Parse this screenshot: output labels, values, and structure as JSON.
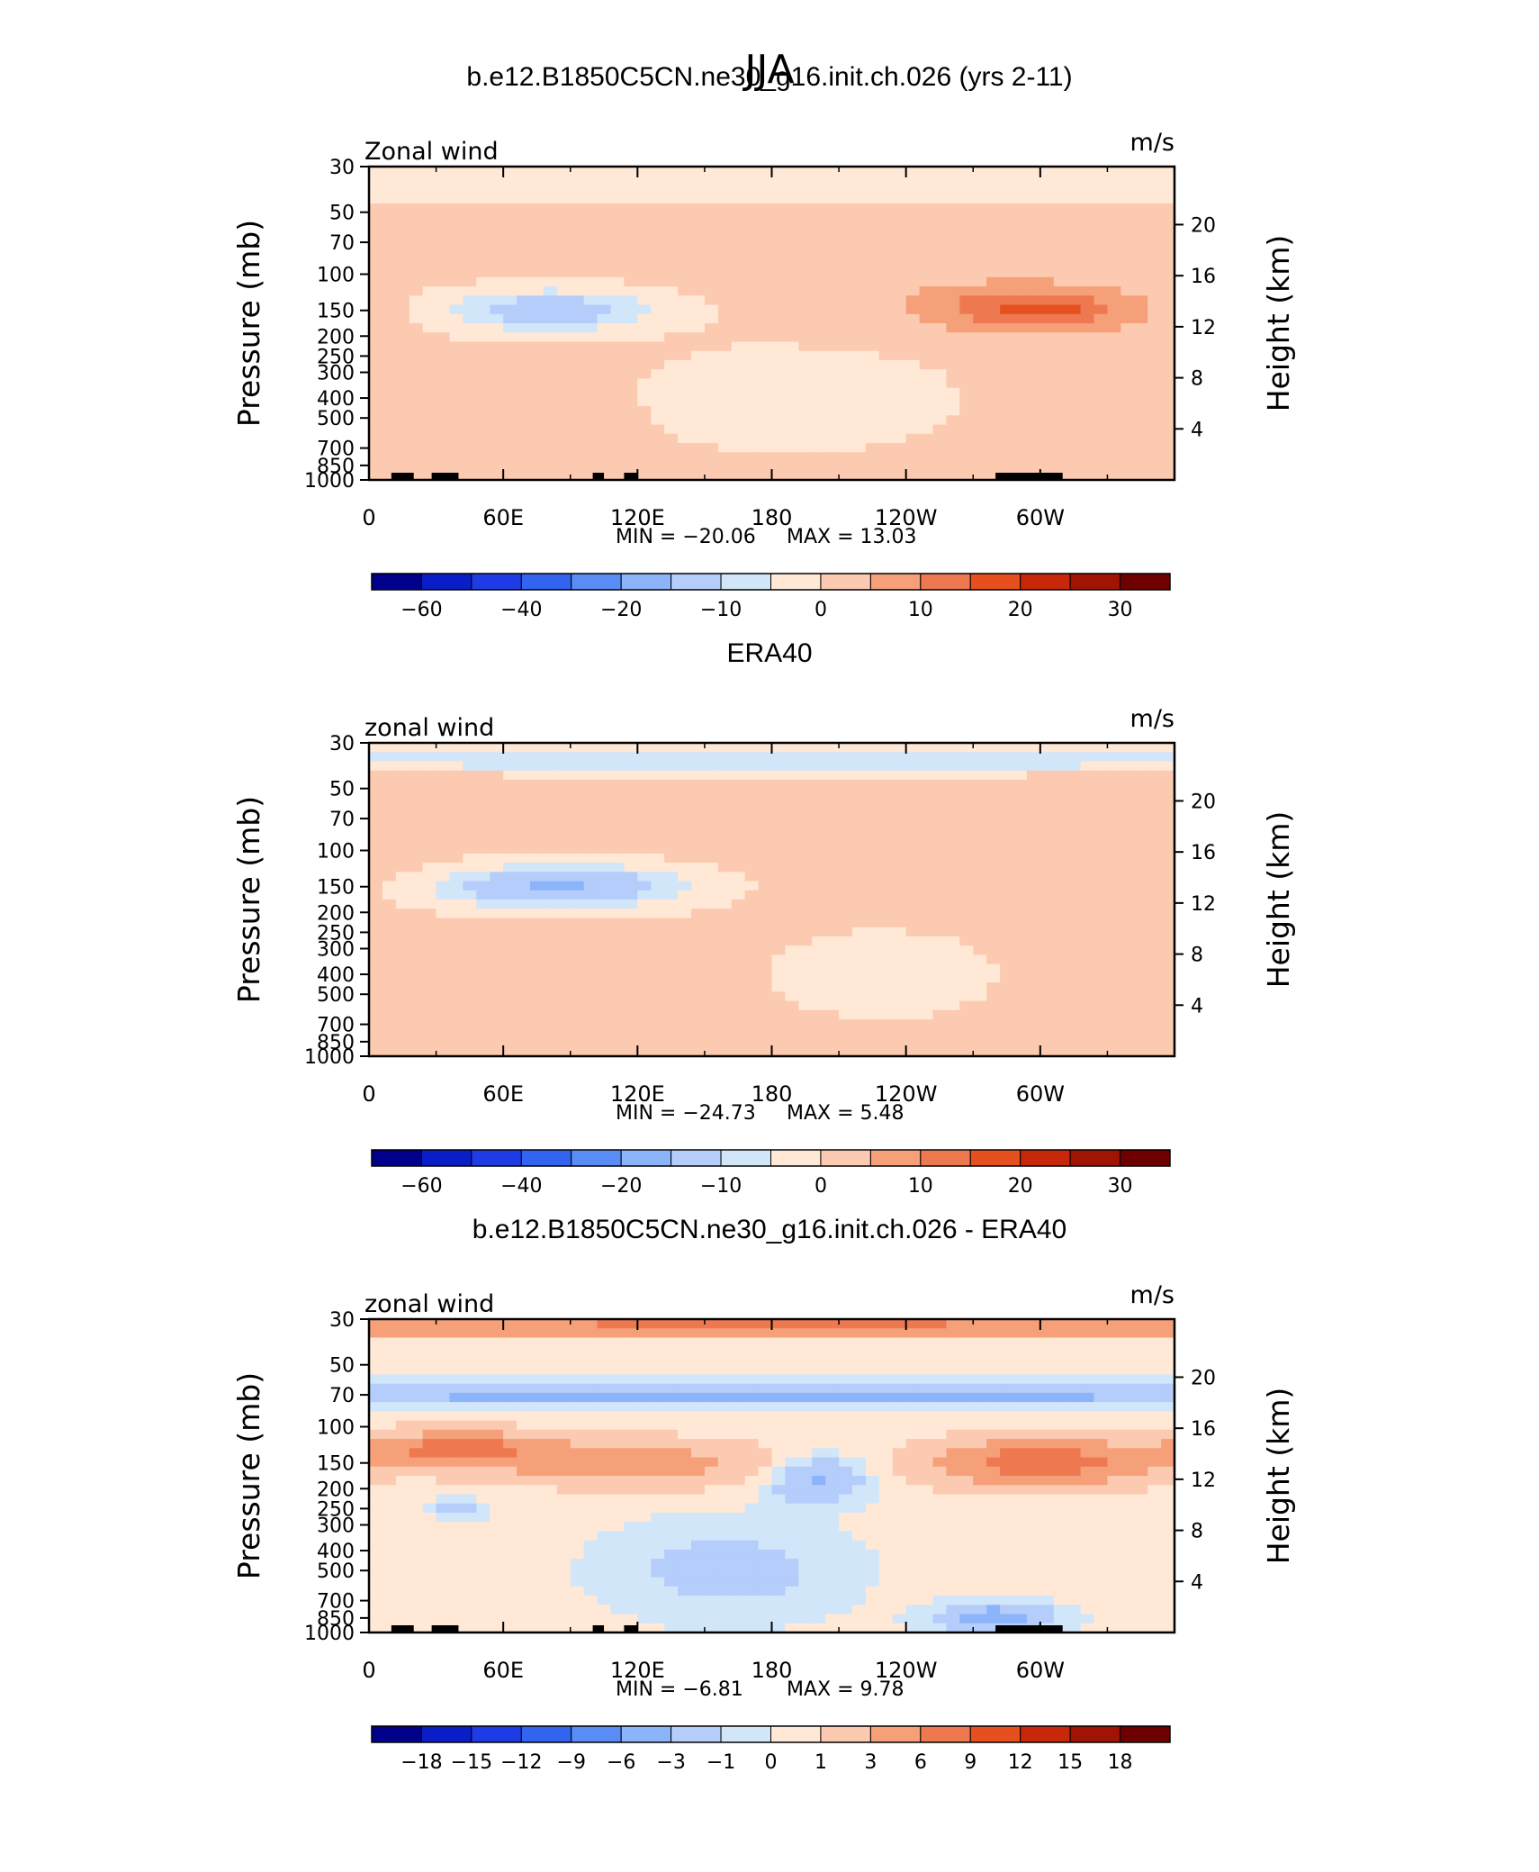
{
  "title": "JJA",
  "colors": {
    "main_scale": [
      "#00008b",
      "#0a1ec8",
      "#1e3ce6",
      "#3264f0",
      "#5a8cf5",
      "#8cb4fa",
      "#b4cdfa",
      "#d2e6fa",
      "#ffe8d6",
      "#fbcab0",
      "#f5a078",
      "#ee7850",
      "#e6501e",
      "#c8280a",
      "#a01405",
      "#6e0000"
    ],
    "diff_scale": [
      "#00008b",
      "#0a1ec8",
      "#1e3ce6",
      "#3264f0",
      "#5a8cf5",
      "#8cb4fa",
      "#b4cdfa",
      "#d2e6fa",
      "#ffe8d6",
      "#fbcab0",
      "#f5a078",
      "#ee7850",
      "#e6501e",
      "#c8280a",
      "#a01405",
      "#6e0000"
    ],
    "land": "#000000"
  },
  "chart_data": [
    {
      "type": "heatmap",
      "title": "b.e12.B1850C5CN.ne30_g16.init.ch.026 (yrs 2-11)",
      "left_label": "Zonal wind",
      "units": "m/s",
      "ylabel": "Pressure (mb)",
      "ylabel_right": "Height (km)",
      "x_ticks": [
        "0",
        "60E",
        "120E",
        "180",
        "120W",
        "60W"
      ],
      "y_ticks": [
        "30",
        "50",
        "70",
        "100",
        "150",
        "200",
        "250",
        "300",
        "400",
        "500",
        "700",
        "850",
        "1000"
      ],
      "y_right_ticks": [
        "20",
        "16",
        "12",
        "8",
        "4"
      ],
      "stats": {
        "min": "MIN =  −20.06",
        "max": "MAX =   13.03"
      },
      "colorbar": {
        "labels": [
          "−60",
          "−40",
          "−20",
          "−10",
          "0",
          "10",
          "20",
          "30"
        ],
        "scale": "main_scale"
      },
      "x_range_deg": [
        0,
        360
      ],
      "y_range_mb": [
        1000,
        30
      ],
      "base_level": 1,
      "features": [
        {
          "lon": 80,
          "p": 150,
          "wlon": 45,
          "wp": 0.22,
          "v": -16
        },
        {
          "lon": 300,
          "p": 150,
          "wlon": 38,
          "wp": 0.22,
          "v": 12
        },
        {
          "lon": 280,
          "p": 140,
          "wlon": 70,
          "wp": 0.35,
          "v": 5
        },
        {
          "lon": 190,
          "p": 400,
          "wlon": 70,
          "wp": 0.6,
          "v": -3
        },
        {
          "lon": 70,
          "p": 500,
          "wlon": 30,
          "wp": 0.25,
          "v": 4
        },
        {
          "lon": 180,
          "p": 38,
          "wlon": 400,
          "wp": 0.15,
          "v": -6
        }
      ],
      "land_segments": [
        [
          10,
          20
        ],
        [
          28,
          40
        ],
        [
          100,
          105
        ],
        [
          114,
          120
        ],
        [
          280,
          310
        ]
      ]
    },
    {
      "type": "heatmap",
      "title": "ERA40",
      "left_label": "zonal wind",
      "units": "m/s",
      "ylabel": "Pressure (mb)",
      "ylabel_right": "Height (km)",
      "x_ticks": [
        "0",
        "60E",
        "120E",
        "180",
        "120W",
        "60W"
      ],
      "y_ticks": [
        "30",
        "50",
        "70",
        "100",
        "150",
        "200",
        "250",
        "300",
        "400",
        "500",
        "700",
        "850",
        "1000"
      ],
      "y_right_ticks": [
        "20",
        "16",
        "12",
        "8",
        "4"
      ],
      "stats": {
        "min": "MIN =  −24.73",
        "max": "MAX =    5.48"
      },
      "colorbar": {
        "labels": [
          "−60",
          "−40",
          "−20",
          "−10",
          "0",
          "10",
          "20",
          "30"
        ],
        "scale": "main_scale"
      },
      "x_range_deg": [
        0,
        360
      ],
      "y_range_mb": [
        1000,
        30
      ],
      "base_level": 1,
      "features": [
        {
          "lon": 85,
          "p": 150,
          "wlon": 50,
          "wp": 0.22,
          "v": -22
        },
        {
          "lon": 290,
          "p": 120,
          "wlon": 70,
          "wp": 0.35,
          "v": 4
        },
        {
          "lon": 230,
          "p": 400,
          "wlon": 60,
          "wp": 0.6,
          "v": -2
        },
        {
          "lon": 70,
          "p": 600,
          "wlon": 35,
          "wp": 0.25,
          "v": 3
        },
        {
          "lon": 180,
          "p": 36,
          "wlon": 400,
          "wp": 0.12,
          "v": -10
        }
      ],
      "land_segments": []
    },
    {
      "type": "heatmap",
      "title": "b.e12.B1850C5CN.ne30_g16.init.ch.026 - ERA40",
      "left_label": "zonal wind",
      "units": "m/s",
      "ylabel": "Pressure (mb)",
      "ylabel_right": "Height (km)",
      "x_ticks": [
        "0",
        "60E",
        "120E",
        "180",
        "120W",
        "60W"
      ],
      "y_ticks": [
        "30",
        "50",
        "70",
        "100",
        "150",
        "200",
        "250",
        "300",
        "400",
        "500",
        "700",
        "850",
        "1000"
      ],
      "y_right_ticks": [
        "20",
        "16",
        "12",
        "8",
        "4"
      ],
      "stats": {
        "min": "MIN =    −6.81",
        "max": "MAX =    9.78"
      },
      "colorbar": {
        "labels": [
          "−18",
          "−15",
          "−12",
          "−9",
          "−6",
          "−3",
          "−1",
          "0",
          "1",
          "3",
          "6",
          "9",
          "12",
          "15",
          "18"
        ],
        "scale": "diff_scale"
      },
      "x_range_deg": [
        0,
        360
      ],
      "y_range_mb": [
        1000,
        30
      ],
      "base_level": 0.3,
      "features": [
        {
          "lon": 180,
          "p": 32,
          "wlon": 400,
          "wp": 0.12,
          "v": 6
        },
        {
          "lon": 180,
          "p": 70,
          "wlon": 400,
          "wp": 0.12,
          "v": -4
        },
        {
          "lon": 40,
          "p": 130,
          "wlon": 40,
          "wp": 0.2,
          "v": 7
        },
        {
          "lon": 120,
          "p": 150,
          "wlon": 60,
          "wp": 0.25,
          "v": 4
        },
        {
          "lon": 300,
          "p": 150,
          "wlon": 45,
          "wp": 0.25,
          "v": 8
        },
        {
          "lon": 200,
          "p": 180,
          "wlon": 20,
          "wp": 0.25,
          "v": -4
        },
        {
          "lon": 160,
          "p": 500,
          "wlon": 50,
          "wp": 0.5,
          "v": -2
        },
        {
          "lon": 280,
          "p": 850,
          "wlon": 25,
          "wp": 0.15,
          "v": -5
        },
        {
          "lon": 40,
          "p": 250,
          "wlon": 10,
          "wp": 0.1,
          "v": -3
        }
      ],
      "land_segments": [
        [
          10,
          20
        ],
        [
          28,
          40
        ],
        [
          100,
          105
        ],
        [
          114,
          120
        ],
        [
          280,
          310
        ]
      ]
    }
  ]
}
